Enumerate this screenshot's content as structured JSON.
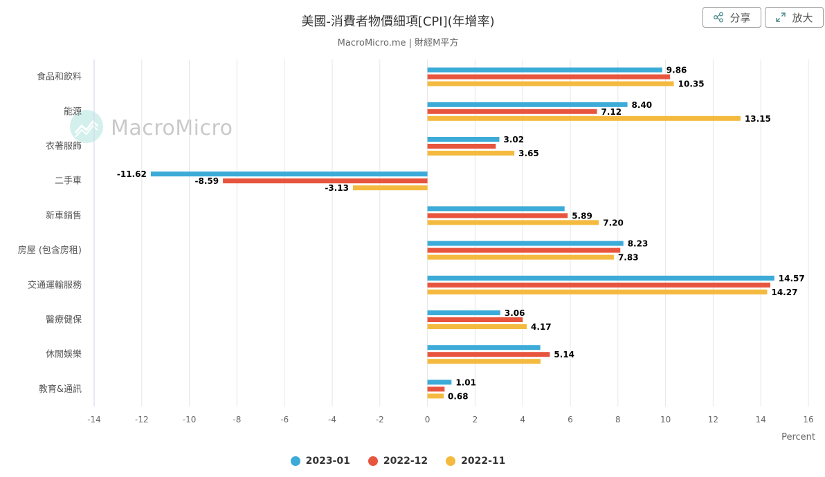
{
  "header": {
    "title": "美國-消費者物價細項[CPI](年增率)",
    "subtitle": "MacroMicro.me | 財經M平方",
    "share_label": "分享",
    "expand_label": "放大",
    "watermark": "MacroMicro"
  },
  "colors": {
    "2023-01": "#3cabd8",
    "2022-12": "#e8553e",
    "2022-11": "#f4ba3f"
  },
  "chart_data": {
    "type": "bar",
    "orientation": "horizontal",
    "title": "美國-消費者物價細項[CPI](年增率)",
    "subtitle": "MacroMicro.me | 財經M平方",
    "xlabel": "Percent",
    "xlim": [
      -14,
      16
    ],
    "xticks": [
      -14,
      -12,
      -10,
      -8,
      -6,
      -4,
      -2,
      0,
      2,
      4,
      6,
      8,
      10,
      12,
      14,
      16
    ],
    "grid": true,
    "legend_position": "bottom",
    "categories": [
      "食品和飲料",
      "能源",
      "衣著服飾",
      "二手車",
      "新車銷售",
      "房屋 (包含房租)",
      "交通運輸服務",
      "醫療健保",
      "休閒娛樂",
      "教育&通訊"
    ],
    "series": [
      {
        "name": "2023-01",
        "values": [
          9.86,
          8.4,
          3.02,
          -11.62,
          5.76,
          8.23,
          14.57,
          3.06,
          4.74,
          1.01
        ],
        "labels": [
          "9.86",
          "8.40",
          "3.02",
          "-11.62",
          "",
          "8.23",
          "14.57",
          "3.06",
          "",
          "1.01"
        ]
      },
      {
        "name": "2022-12",
        "values": [
          10.19,
          7.12,
          2.87,
          -8.59,
          5.89,
          8.1,
          14.4,
          4.0,
          5.14,
          0.72
        ],
        "labels": [
          "",
          "7.12",
          "",
          "-8.59",
          "5.89",
          "",
          "",
          "",
          "5.14",
          ""
        ]
      },
      {
        "name": "2022-11",
        "values": [
          10.35,
          13.15,
          3.65,
          -3.13,
          7.2,
          7.83,
          14.27,
          4.17,
          4.75,
          0.68
        ],
        "labels": [
          "10.35",
          "13.15",
          "3.65",
          "-3.13",
          "7.20",
          "7.83",
          "14.27",
          "4.17",
          "",
          "0.68"
        ]
      }
    ]
  }
}
